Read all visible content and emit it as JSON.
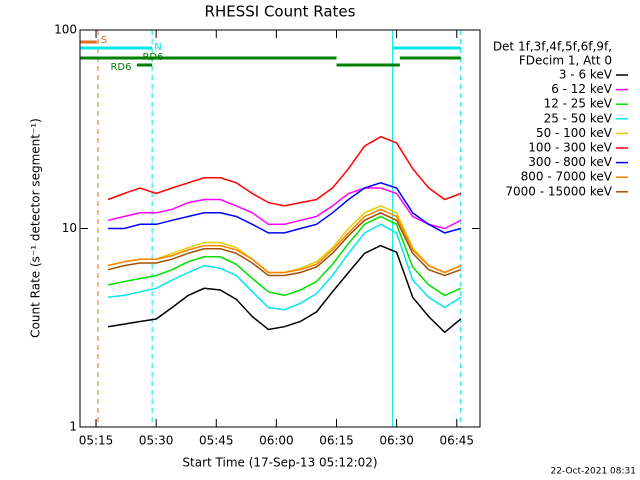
{
  "chart_data": {
    "type": "line",
    "title": "RHESSI Count Rates",
    "x_label": "Start Time (17-Sep-13 05:12:02)",
    "y_label": "Count Rate (s⁻¹ detector segment⁻¹)",
    "legend_header": [
      "Det 1f,3f,4f,5f,6f,9f,",
      "FDecim 1, Att 0"
    ],
    "footer": "22-Oct-2021 08:31",
    "log_y": true,
    "xlim": [
      11,
      110.8
    ],
    "xticks": [
      {
        "value": 15,
        "label": "05:15"
      },
      {
        "value": 30,
        "label": "05:30"
      },
      {
        "value": 45,
        "label": "05:45"
      },
      {
        "value": 60,
        "label": "06:00"
      },
      {
        "value": 75,
        "label": "06:15"
      },
      {
        "value": 90,
        "label": "06:30"
      },
      {
        "value": 105,
        "label": "06:45"
      }
    ],
    "ylim": [
      1,
      100
    ],
    "yticks": [
      1,
      10,
      100
    ],
    "x": [
      18,
      22,
      26,
      30,
      34,
      38,
      42,
      46,
      50,
      54,
      58,
      62,
      66,
      70,
      74,
      78,
      82,
      86,
      90,
      94,
      98,
      102,
      106
    ],
    "series": [
      {
        "name": "3 - 6 keV",
        "color": "#000000",
        "values": [
          3.2,
          3.3,
          3.4,
          3.5,
          4.0,
          4.6,
          5.0,
          4.9,
          4.4,
          3.6,
          3.1,
          3.2,
          3.4,
          3.8,
          4.8,
          6.0,
          7.5,
          8.2,
          7.6,
          4.5,
          3.6,
          3.0,
          3.5
        ]
      },
      {
        "name": "6 - 12 keV",
        "color": "#ff00ff",
        "values": [
          11,
          11.5,
          12,
          12,
          12.5,
          13.5,
          14,
          14,
          13,
          12,
          10.5,
          10.5,
          11,
          11.5,
          13,
          15,
          16,
          16,
          15,
          11.5,
          10.5,
          10,
          11
        ]
      },
      {
        "name": "12 - 25 keV",
        "color": "#00e000",
        "values": [
          5.2,
          5.4,
          5.6,
          5.8,
          6.2,
          6.8,
          7.2,
          7.2,
          6.6,
          5.6,
          4.8,
          4.6,
          4.9,
          5.4,
          6.6,
          8.4,
          10.5,
          11.5,
          10.5,
          6.4,
          5.2,
          4.6,
          5
        ]
      },
      {
        "name": "25 - 50 keV",
        "color": "#00e8e8",
        "values": [
          4.5,
          4.6,
          4.8,
          5,
          5.5,
          6,
          6.5,
          6.3,
          5.8,
          4.8,
          4,
          3.9,
          4.2,
          4.7,
          5.8,
          7.5,
          9.5,
          10.5,
          9.5,
          5.5,
          4.5,
          4,
          4.5
        ]
      },
      {
        "name": "50 - 100 keV",
        "color": "#e0d000",
        "values": [
          6.5,
          6.8,
          7,
          7,
          7.5,
          8,
          8.5,
          8.5,
          8,
          7,
          6,
          6,
          6.3,
          6.8,
          8,
          10,
          12,
          13,
          12,
          8,
          6.5,
          6,
          6.5
        ]
      },
      {
        "name": "100 - 300 keV",
        "color": "#ff0000",
        "values": [
          14,
          15,
          16,
          15,
          16,
          17,
          18,
          18,
          17,
          15,
          13.5,
          13,
          13.5,
          14,
          16,
          20,
          26,
          29,
          27,
          20,
          16,
          14,
          15
        ]
      },
      {
        "name": "300 - 800 keV",
        "color": "#0000ff",
        "values": [
          10,
          10,
          10.5,
          10.5,
          11,
          11.5,
          12,
          12,
          11.5,
          10.5,
          9.5,
          9.5,
          10,
          10.5,
          12,
          14,
          16,
          17,
          16,
          12,
          10.5,
          9.5,
          10
        ]
      },
      {
        "name": "800 - 7000 keV",
        "color": "#ff8000",
        "values": [
          6.5,
          6.8,
          7,
          7,
          7.3,
          7.8,
          8.2,
          8.2,
          7.8,
          7,
          6,
          6,
          6.2,
          6.6,
          7.8,
          9.5,
          11.5,
          12.5,
          11.5,
          7.8,
          6.5,
          6,
          6.5
        ]
      },
      {
        "name": "7000 - 15000 keV",
        "color": "#a05000",
        "values": [
          6.2,
          6.5,
          6.7,
          6.7,
          7,
          7.5,
          7.9,
          7.9,
          7.5,
          6.7,
          5.8,
          5.8,
          6,
          6.4,
          7.5,
          9.2,
          11,
          12,
          11,
          7.5,
          6.2,
          5.8,
          6.2
        ]
      }
    ],
    "vlines": [
      {
        "x": 11,
        "color": "#00e8e8",
        "dashed": false
      },
      {
        "x": 15.5,
        "color": "#e07020",
        "dashed": true
      },
      {
        "x": 29,
        "color": "#00e8e8",
        "dashed": true
      },
      {
        "x": 89,
        "color": "#00e8e8",
        "dashed": false
      },
      {
        "x": 106,
        "color": "#00e8e8",
        "dashed": true
      }
    ],
    "flags": [
      {
        "label": "S",
        "color": "#e07020",
        "x": [
          11,
          15.2
        ]
      },
      {
        "label": "N",
        "color": "#00e8e8",
        "x": [
          11,
          29
        ]
      },
      {
        "color": "#00e8e8",
        "x": [
          89,
          106
        ]
      },
      {
        "label": "RD6",
        "color": "#008000",
        "x": [
          11,
          75
        ]
      },
      {
        "color": "#008000",
        "x": [
          90.8,
          106
        ]
      },
      {
        "color": "#008000",
        "x": [
          75,
          90.8
        ]
      },
      {
        "label": "RD6",
        "color": "#008000",
        "x": [
          25.2,
          29
        ]
      }
    ]
  }
}
